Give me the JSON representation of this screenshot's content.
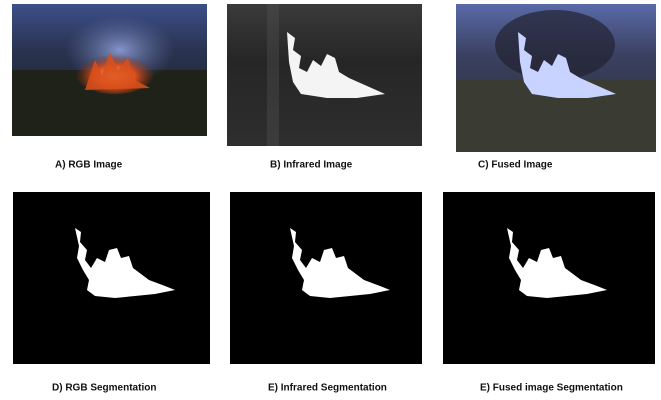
{
  "panels": [
    {
      "caption": "A) RGB Image"
    },
    {
      "caption": "B) Infrared Image"
    },
    {
      "caption": "C) Fused Image"
    },
    {
      "caption": "D) RGB Segmentation"
    },
    {
      "caption": "E) Infrared Segmentation"
    },
    {
      "caption": "E) Fused image Segmentation"
    }
  ]
}
